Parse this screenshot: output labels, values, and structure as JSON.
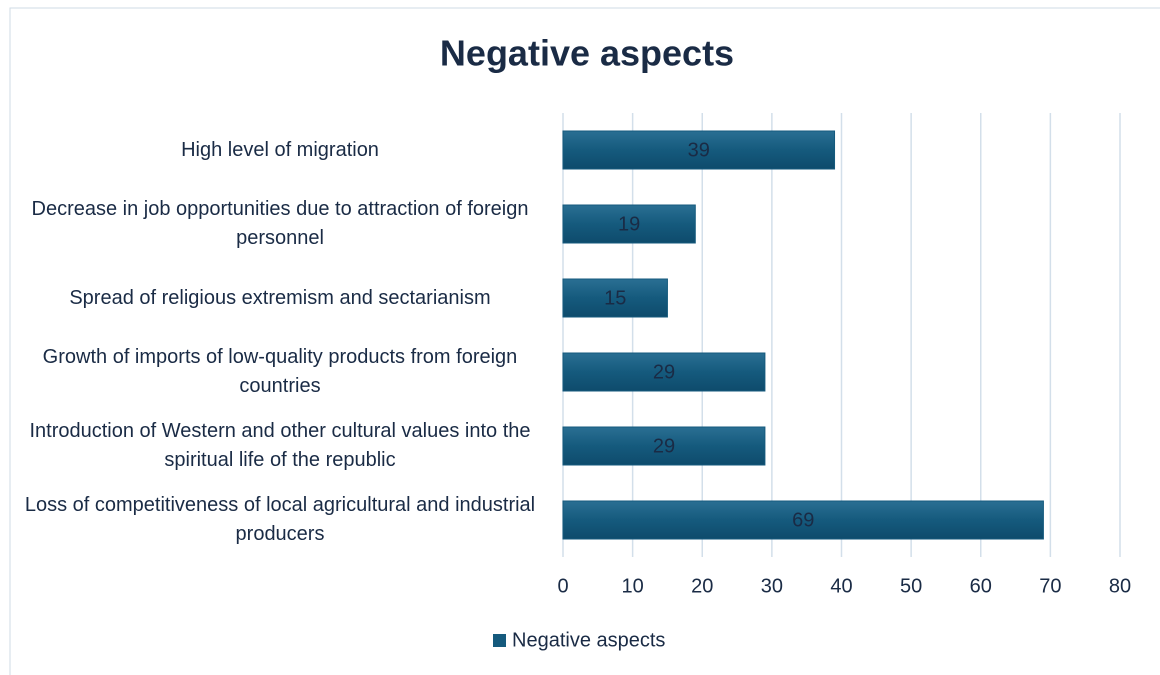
{
  "chart_data": {
    "type": "barh",
    "title": "Negative aspects",
    "categories": [
      "High level of migration",
      "Decrease in job opportunities due to attraction of foreign personnel",
      "Spread of religious extremism and sectarianism",
      "Growth of imports of low-quality products from foreign countries",
      "Introduction of Western and other cultural values into the spiritual life of the republic",
      "Loss of competitiveness of local agricultural and industrial producers"
    ],
    "series": [
      {
        "name": "Negative aspects",
        "color": "#155a7d",
        "values": [
          39,
          19,
          15,
          29,
          29,
          69
        ]
      }
    ],
    "xlim": [
      0,
      80
    ],
    "xticks": [
      0,
      10,
      20,
      30,
      40,
      50,
      60,
      70,
      80
    ],
    "grid": true,
    "legend": "bottom"
  }
}
